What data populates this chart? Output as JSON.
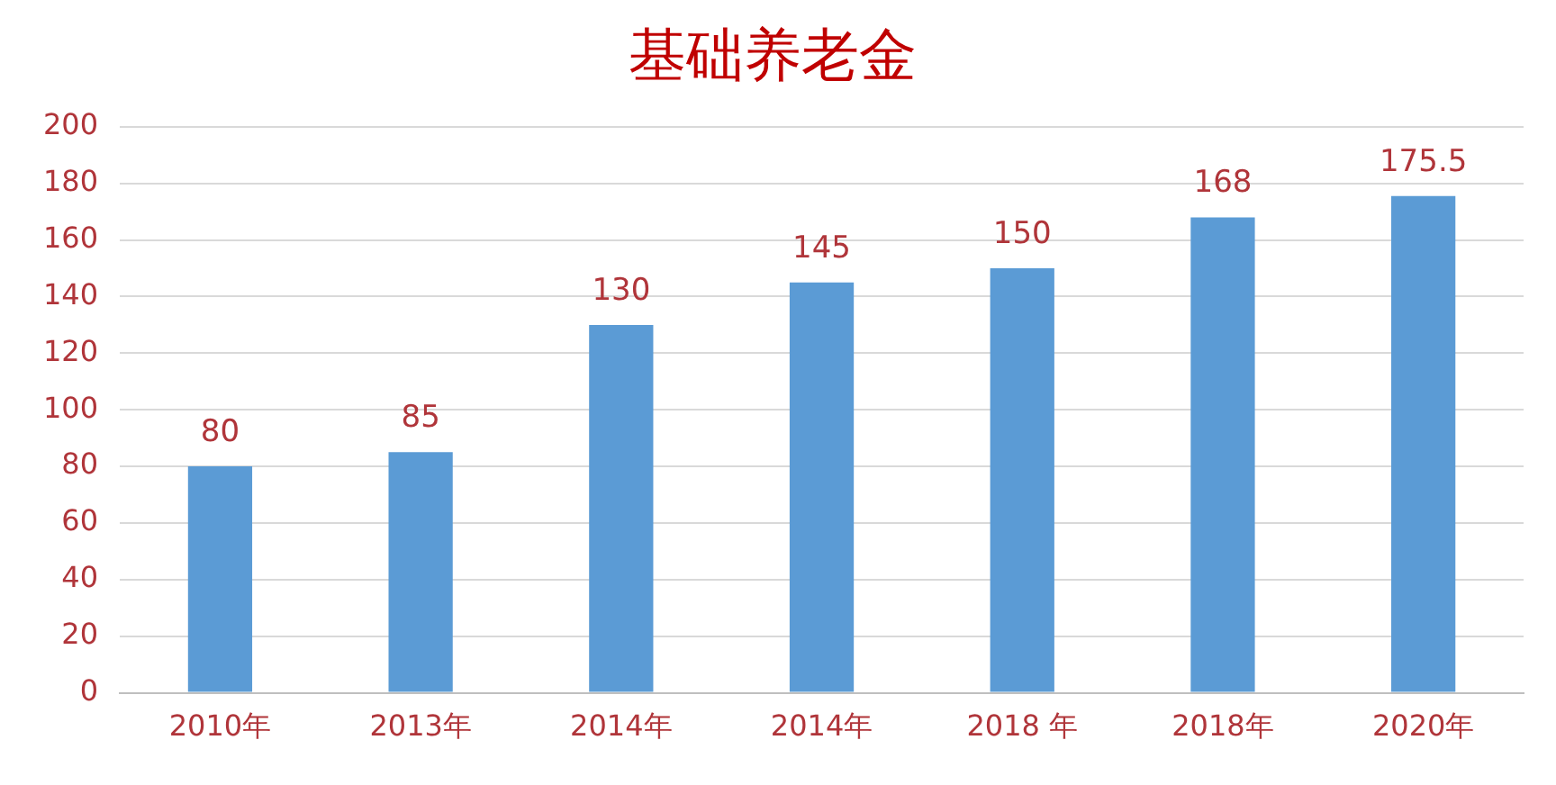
{
  "chart_data": {
    "type": "bar",
    "title": "基础养老金",
    "categories": [
      "2010年",
      "2013年",
      "2014年",
      "2014年",
      "2018 年",
      "2018年",
      "2020年"
    ],
    "values": [
      80,
      85,
      130,
      145,
      150,
      168,
      175.5
    ],
    "color": "#5b9bd5",
    "ylim": [
      0,
      200
    ],
    "yticks": [
      0,
      20,
      40,
      60,
      80,
      100,
      120,
      140,
      160,
      180,
      200
    ],
    "grid": "y",
    "data_labels": true,
    "legend": false
  }
}
